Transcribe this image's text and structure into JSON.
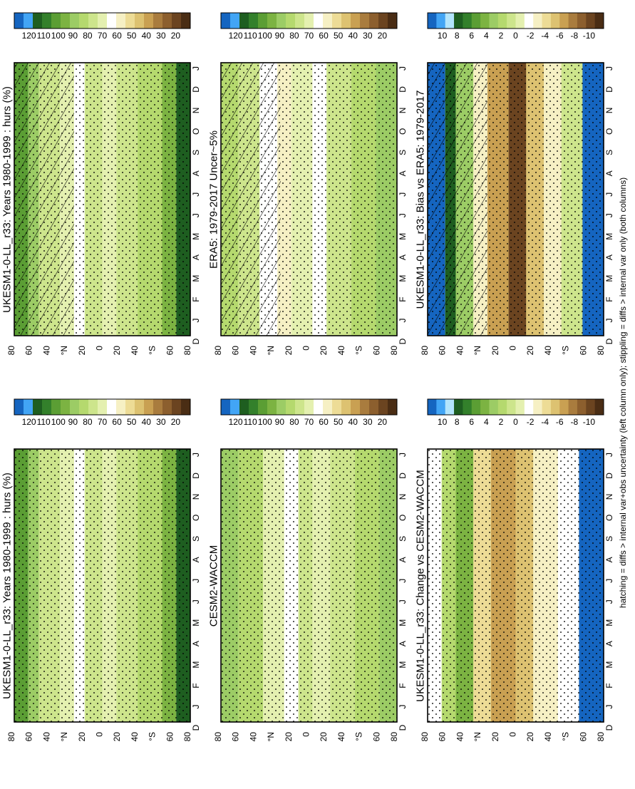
{
  "footnote": "hatching = diffs > internal var+obs uncertainty (left column only); stippling = diffs > internal var only (both columns)",
  "month_ticks": [
    "D",
    "J",
    "F",
    "M",
    "A",
    "M",
    "J",
    "J",
    "A",
    "S",
    "O",
    "N",
    "D",
    "J"
  ],
  "lat_ticks": [
    "80",
    "60",
    "40",
    "°N",
    "20",
    "0",
    "20",
    "40",
    "°S",
    "60",
    "80"
  ],
  "palettes": {
    "absolute": [
      "#1565c0",
      "#42a5f5",
      "#1e5e20",
      "#33802b",
      "#5b9e34",
      "#7cb342",
      "#9ccc65",
      "#b5d96e",
      "#cde58c",
      "#e4f0b0",
      "#ffffff",
      "#f6f0c4",
      "#eddc96",
      "#ddc271",
      "#c9a052",
      "#a97c3e",
      "#8c5f2e",
      "#6b4420",
      "#4a2d14"
    ],
    "difference": [
      "#1565c0",
      "#42a5f5",
      "#b3e5fc",
      "#1e5e20",
      "#33802b",
      "#5b9e34",
      "#7cb342",
      "#9ccc65",
      "#b5d96e",
      "#cde58c",
      "#e4f0b0",
      "#ffffff",
      "#f6f0c4",
      "#eddc96",
      "#ddc271",
      "#c9a052",
      "#a97c3e",
      "#8c5f2e",
      "#6b4420",
      "#4a2d14"
    ]
  },
  "colorbar_labels": {
    "absolute": [
      "120",
      "110",
      "100",
      "90",
      "80",
      "70",
      "60",
      "50",
      "40",
      "30",
      "20"
    ],
    "difference": [
      "10",
      "8",
      "6",
      "4",
      "2",
      "0",
      "-2",
      "-4",
      "-6",
      "-8",
      "-10"
    ]
  },
  "panels": [
    {
      "id": "ukesm-left",
      "title": "UKESM1-0-LL_r33: Years 1980-1999 : hurs (%)",
      "kind": "absolute",
      "hatched": true
    },
    {
      "id": "ukesm-right",
      "title": "UKESM1-0-LL_r33: Years 1980-1999 : hurs (%)",
      "kind": "absolute",
      "hatched": false
    },
    {
      "id": "era5",
      "title": "ERA5: 1979-2017 Uncer~5%",
      "kind": "absolute",
      "hatched": true
    },
    {
      "id": "cesm2",
      "title": "CESM2-WACCM",
      "kind": "absolute",
      "hatched": false
    },
    {
      "id": "bias",
      "title": "UKESM1-0-LL_r33: Bias vs ERA5: 1979-2017",
      "kind": "difference",
      "hatched": true
    },
    {
      "id": "change",
      "title": "UKESM1-0-LL_r33: Change vs CESM2-WACCM",
      "kind": "difference",
      "hatched": false
    }
  ],
  "chart_data": [
    {
      "type": "heatmap",
      "title": "UKESM1-0-LL_r33: Years 1980-1999 : hurs (%)",
      "variable": "near-surface relative humidity (%)",
      "x": "month (D, J..D, J)",
      "y": "latitude 90S-90N",
      "colorbar_range": [
        20,
        120
      ],
      "features": "~85-95% at 80N-60N; ~70-80% near 20N; ~75-85% at equator; ~70-75% near 20S; ~80-90% at 40-60S; ~105-115% over Antarctica (80S) May-Sep"
    },
    {
      "type": "heatmap",
      "title": "ERA5: 1979-2017 Uncer~5%",
      "variable": "near-surface relative humidity (%)",
      "x": "month (D, J..D, J)",
      "y": "latitude 90S-90N",
      "colorbar_range": [
        20,
        120
      ],
      "features": "~85-90% at high northern latitudes; ~60-70% near 20N; ~80% at equator; ~70% near 20S; ~85-95% at 60S"
    },
    {
      "type": "heatmap",
      "title": "UKESM1-0-LL_r33: Bias vs ERA5: 1979-2017",
      "variable": "hurs bias (%)",
      "x": "month (D, J..D, J)",
      "y": "latitude 90S-90N",
      "colorbar_range": [
        -10,
        10
      ],
      "features": "+10 or more north of 60N and over Antarctica; -8 to -10 near equator; +4 around 20N-30N"
    },
    {
      "type": "heatmap",
      "title": "UKESM1-0-LL_r33: Years 1980-1999 : hurs (%)",
      "variable": "near-surface relative humidity (%)",
      "x": "month (D, J..D, J)",
      "y": "latitude 90S-90N",
      "colorbar_range": [
        20,
        120
      ],
      "features": "same field as left panel, stippling only"
    },
    {
      "type": "heatmap",
      "title": "CESM2-WACCM",
      "variable": "near-surface relative humidity (%)",
      "x": "month (D, J..D, J)",
      "y": "latitude 90S-90N",
      "colorbar_range": [
        20,
        120
      ],
      "features": "~85-90% at high latitudes; ~70-75% near 20N; ~80% equator; ~90% at 60S-80S"
    },
    {
      "type": "heatmap",
      "title": "UKESM1-0-LL_r33: Change vs CESM2-WACCM",
      "variable": "hurs difference (%)",
      "x": "month (D, J..D, J)",
      "y": "latitude 90S-90N",
      "colorbar_range": [
        -10,
        10
      ],
      "features": "+10 or more over Antarctica Apr-Oct; -4 to -8 near equator; +4 near 40N-50N in winter"
    }
  ]
}
